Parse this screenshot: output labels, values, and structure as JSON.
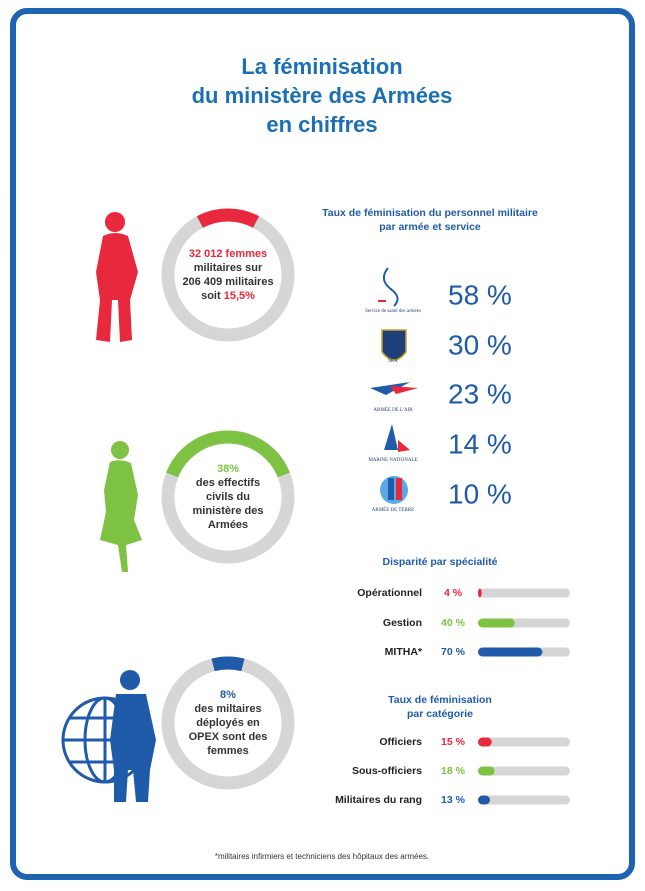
{
  "header": {
    "title_lines": [
      "La féminisation",
      "du ministère des Armées",
      "en chiffres"
    ]
  },
  "rings": [
    {
      "value": 15.5,
      "color": "#e8283c",
      "lines": [
        [
          {
            "text": "32 012 femmes",
            "color": "#e8283c"
          }
        ],
        [
          {
            "text": "militaires sur",
            "color": "#333333"
          }
        ],
        [
          {
            "text": "206 409 militaires",
            "color": "#333333"
          }
        ],
        [
          {
            "text": "soit ",
            "color": "#333333"
          },
          {
            "text": "15,5%",
            "color": "#e8283c"
          }
        ]
      ]
    },
    {
      "value": 38,
      "color": "#7dc242",
      "lines": [
        [
          {
            "text": "38%",
            "color": "#7dc242"
          }
        ],
        [
          {
            "text": "des effectifs",
            "color": "#333333"
          }
        ],
        [
          {
            "text": "civils du",
            "color": "#333333"
          }
        ],
        [
          {
            "text": "ministère des",
            "color": "#333333"
          }
        ],
        [
          {
            "text": "Armées",
            "color": "#333333"
          }
        ]
      ]
    },
    {
      "value": 8,
      "color": "#1f5ba8",
      "lines": [
        [
          {
            "text": "8%",
            "color": "#1f5ba8"
          }
        ],
        [
          {
            "text": "des miltaires",
            "color": "#333333"
          }
        ],
        [
          {
            "text": "déployés en",
            "color": "#333333"
          }
        ],
        [
          {
            "text": "OPEX sont des",
            "color": "#333333"
          }
        ],
        [
          {
            "text": "femmes",
            "color": "#333333"
          }
        ]
      ]
    }
  ],
  "services": {
    "title_lines": [
      "Taux de féminisation du personnel militaire",
      "par armée et service"
    ],
    "items": [
      {
        "logo": "Service de santé des armées",
        "rate": "58 %"
      },
      {
        "logo": "SEA",
        "rate": "30 %"
      },
      {
        "logo": "ARMÉE DE L'AIR",
        "rate": "23 %"
      },
      {
        "logo": "MARINE NATIONALE",
        "rate": "14 %"
      },
      {
        "logo": "ARMÉE DE TERRE",
        "rate": "10 %"
      }
    ]
  },
  "specialty": {
    "title": "Disparité par spécialité",
    "items": [
      {
        "name": "Opérationnel",
        "label": "4 %",
        "value": 4,
        "color": "#e8283c"
      },
      {
        "name": "Gestion",
        "label": "40 %",
        "value": 40,
        "color": "#7dc242"
      },
      {
        "name": "MITHA*",
        "label": "70 %",
        "value": 70,
        "color": "#1f5ba8"
      }
    ]
  },
  "category": {
    "title_lines": [
      "Taux de féminisation",
      "par catégorie"
    ],
    "items": [
      {
        "name": "Officiers",
        "label": "15 %",
        "value": 15,
        "color": "#e8283c"
      },
      {
        "name": "Sous-officiers",
        "label": "18 %",
        "value": 18,
        "color": "#7dc242"
      },
      {
        "name": "Militaires du rang",
        "label": "13 %",
        "value": 13,
        "color": "#1f5ba8"
      }
    ]
  },
  "footnote": "*militaires infirmiers et techniciens des hôpitaux des armées."
}
